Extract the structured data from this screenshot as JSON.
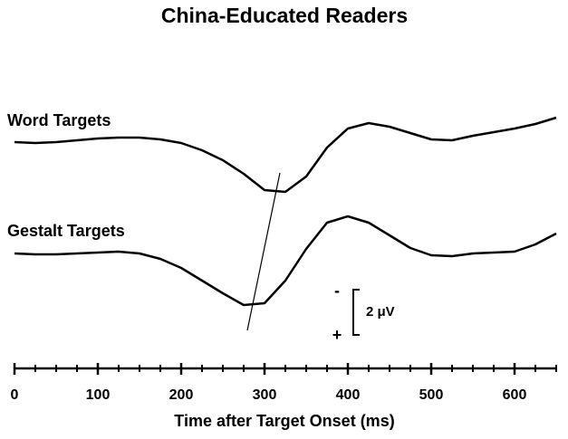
{
  "chart_data": {
    "type": "line",
    "title": "China-Educated Readers",
    "x_label": "Time after Target Onset (ms)",
    "x": [
      0,
      25,
      50,
      75,
      100,
      125,
      150,
      175,
      200,
      225,
      250,
      275,
      300,
      325,
      350,
      375,
      400,
      425,
      450,
      475,
      500,
      525,
      550,
      575,
      600,
      625,
      650
    ],
    "xlim": [
      0,
      650
    ],
    "xticks": [
      0,
      100,
      200,
      300,
      400,
      500,
      600
    ],
    "xminor_ticks": [
      0,
      25,
      50,
      75,
      100,
      125,
      150,
      175,
      200,
      225,
      250,
      275,
      300,
      325,
      350,
      375,
      400,
      425,
      450,
      475,
      500,
      525,
      550,
      575,
      600,
      625,
      650
    ],
    "negative_up": true,
    "color": "#000000",
    "series": [
      {
        "name": "Word Targets",
        "values": [
          0,
          0.04,
          0,
          -0.08,
          -0.16,
          -0.2,
          -0.2,
          -0.12,
          0.04,
          0.36,
          0.8,
          1.4,
          2.12,
          2.2,
          1.52,
          0.24,
          -0.6,
          -0.84,
          -0.68,
          -0.4,
          -0.12,
          -0.08,
          -0.28,
          -0.44,
          -0.6,
          -0.8,
          -1.08
        ]
      },
      {
        "name": "Gestalt Targets",
        "values": [
          0,
          0.04,
          0.04,
          0,
          -0.04,
          -0.08,
          0,
          0.24,
          0.64,
          1.2,
          1.76,
          2.28,
          2.2,
          1.2,
          -0.2,
          -1.36,
          -1.64,
          -1.36,
          -0.8,
          -0.24,
          0.08,
          0.12,
          0,
          -0.04,
          -0.08,
          -0.4,
          -0.88
        ]
      }
    ],
    "scale_bar": {
      "value": 2,
      "label": "2 μV",
      "top": "-",
      "bottom": "+"
    }
  }
}
